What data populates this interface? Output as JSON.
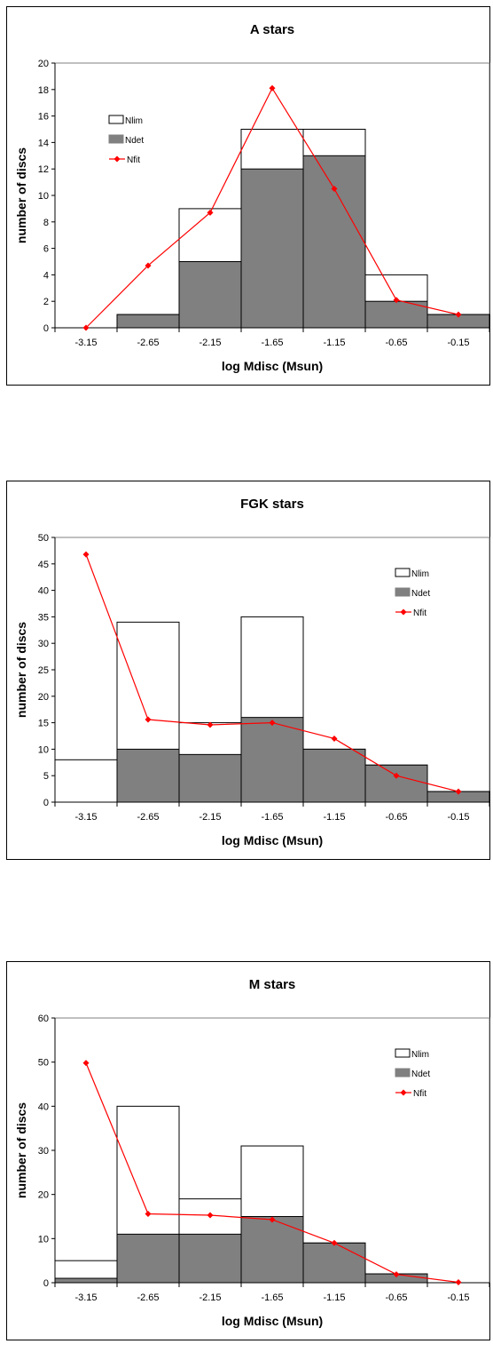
{
  "chart_data": [
    {
      "type": "bar",
      "title": "A stars",
      "xlabel": "log Mdisc (Msun)",
      "ylabel": "number of discs",
      "categories": [
        "-3.15",
        "-2.65",
        "-2.15",
        "-1.65",
        "-1.15",
        "-0.65",
        "-0.15"
      ],
      "ylim": [
        0,
        20
      ],
      "yticks": [
        0,
        2,
        4,
        6,
        8,
        10,
        12,
        14,
        16,
        18,
        20
      ],
      "series": [
        {
          "name": "Nlim",
          "kind": "bar",
          "values": [
            0,
            1,
            9,
            15,
            15,
            4,
            1
          ]
        },
        {
          "name": "Ndet",
          "kind": "bar",
          "values": [
            0,
            1,
            5,
            12,
            13,
            2,
            1
          ]
        },
        {
          "name": "Nfit",
          "kind": "line",
          "values": [
            0,
            4.7,
            8.7,
            18.1,
            10.5,
            2.1,
            1.0
          ]
        }
      ],
      "legend_position": "left",
      "grid": false
    },
    {
      "type": "bar",
      "title": "FGK stars",
      "xlabel": "log Mdisc (Msun)",
      "ylabel": "number of discs",
      "categories": [
        "-3.15",
        "-2.65",
        "-2.15",
        "-1.65",
        "-1.15",
        "-0.65",
        "-0.15"
      ],
      "ylim": [
        0,
        50
      ],
      "yticks": [
        0,
        5,
        10,
        15,
        20,
        25,
        30,
        35,
        40,
        45,
        50
      ],
      "series": [
        {
          "name": "Nlim",
          "kind": "bar",
          "values": [
            8,
            34,
            15,
            35,
            10,
            7,
            2
          ]
        },
        {
          "name": "Ndet",
          "kind": "bar",
          "values": [
            0,
            10,
            9,
            16,
            10,
            7,
            2
          ]
        },
        {
          "name": "Nfit",
          "kind": "line",
          "values": [
            46.8,
            15.6,
            14.6,
            15.0,
            12.0,
            5.0,
            2.0
          ]
        }
      ],
      "legend_position": "right",
      "grid": false
    },
    {
      "type": "bar",
      "title": "M stars",
      "xlabel": "log Mdisc (Msun)",
      "ylabel": "number of discs",
      "categories": [
        "-3.15",
        "-2.65",
        "-2.15",
        "-1.65",
        "-1.15",
        "-0.65",
        "-0.15"
      ],
      "ylim": [
        0,
        60
      ],
      "yticks": [
        0,
        10,
        20,
        30,
        40,
        50,
        60
      ],
      "series": [
        {
          "name": "Nlim",
          "kind": "bar",
          "values": [
            5,
            40,
            19,
            31,
            9,
            2,
            0
          ]
        },
        {
          "name": "Ndet",
          "kind": "bar",
          "values": [
            1,
            11,
            11,
            15,
            9,
            2,
            0
          ]
        },
        {
          "name": "Nfit",
          "kind": "line",
          "values": [
            49.8,
            15.6,
            15.3,
            14.3,
            9.0,
            1.9,
            0.1
          ]
        }
      ],
      "legend_position": "right",
      "grid": false
    }
  ],
  "colors": {
    "ndet_fill": "#808080",
    "nlim_fill": "#ffffff",
    "nfit_line": "#ff0000",
    "axis": "#000000"
  }
}
